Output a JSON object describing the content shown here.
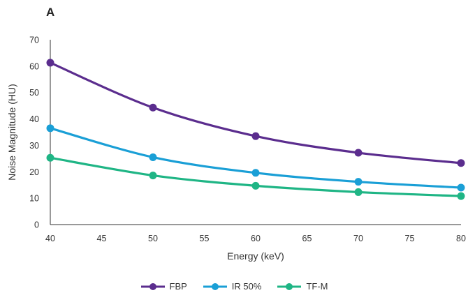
{
  "panel_label": "A",
  "chart_data": {
    "type": "line",
    "title": "",
    "xlabel": "Energy (keV)",
    "ylabel": "Noise Magnitude (HU)",
    "x": [
      40,
      50,
      60,
      70,
      80
    ],
    "xlim": [
      40,
      80
    ],
    "xticks": [
      40,
      45,
      50,
      55,
      60,
      65,
      70,
      75,
      80
    ],
    "ylim": [
      0,
      70
    ],
    "yticks": [
      0,
      10,
      20,
      30,
      40,
      50,
      60,
      70
    ],
    "grid": false,
    "legend_position": "bottom",
    "series": [
      {
        "name": "FBP",
        "color": "#5b2d8e",
        "values": [
          61.3,
          44.3,
          33.5,
          27.2,
          23.3
        ]
      },
      {
        "name": "IR 50%",
        "color": "#1a9fd6",
        "values": [
          36.5,
          25.5,
          19.6,
          16.2,
          14.0
        ]
      },
      {
        "name": "TF-M",
        "color": "#1fb585",
        "values": [
          25.3,
          18.6,
          14.7,
          12.3,
          10.8
        ]
      }
    ]
  }
}
